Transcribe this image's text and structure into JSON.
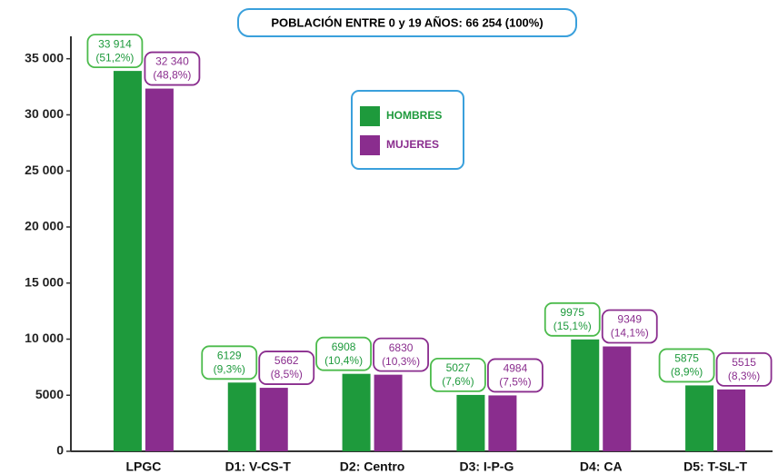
{
  "chart_data": {
    "type": "bar",
    "title": "POBLACIÓN ENTRE 0 y 19 AÑOS: 66 254 (100%)",
    "categories": [
      "LPGC",
      "D1: V-CS-T",
      "D2: Centro",
      "D3: I-P-G",
      "D4: CA",
      "D5: T-SL-T"
    ],
    "series": [
      {
        "name": "HOMBRES",
        "color": "#1e9a3c",
        "values": [
          33914,
          6129,
          6908,
          5027,
          9975,
          5875
        ],
        "value_labels": [
          "33 914",
          "6129",
          "6908",
          "5027",
          "9975",
          "5875"
        ],
        "shares": [
          "(51,2%)",
          "(9,3%)",
          "(10,4%)",
          "(7,6%)",
          "(15,1%)",
          "(8,9%)"
        ]
      },
      {
        "name": "MUJERES",
        "color": "#8a2d8e",
        "values": [
          32340,
          5662,
          6830,
          4984,
          9349,
          5515
        ],
        "value_labels": [
          "32 340",
          "5662",
          "6830",
          "4984",
          "9349",
          "5515"
        ],
        "shares": [
          "(48,8%)",
          "(8,5%)",
          "(10,3%)",
          "(7,5%)",
          "(14,1%)",
          "(8,3%)"
        ]
      }
    ],
    "ylim": [
      0,
      37000
    ],
    "yticks": [
      0,
      5000,
      {
        "value": 10000,
        "label": "10 000"
      },
      {
        "value": 15000,
        "label": "15 000"
      },
      {
        "value": 20000,
        "label": "20 000"
      },
      {
        "value": 25000,
        "label": "25 000"
      },
      {
        "value": 30000,
        "label": "30 000"
      },
      {
        "value": 35000,
        "label": "35 000"
      }
    ]
  }
}
